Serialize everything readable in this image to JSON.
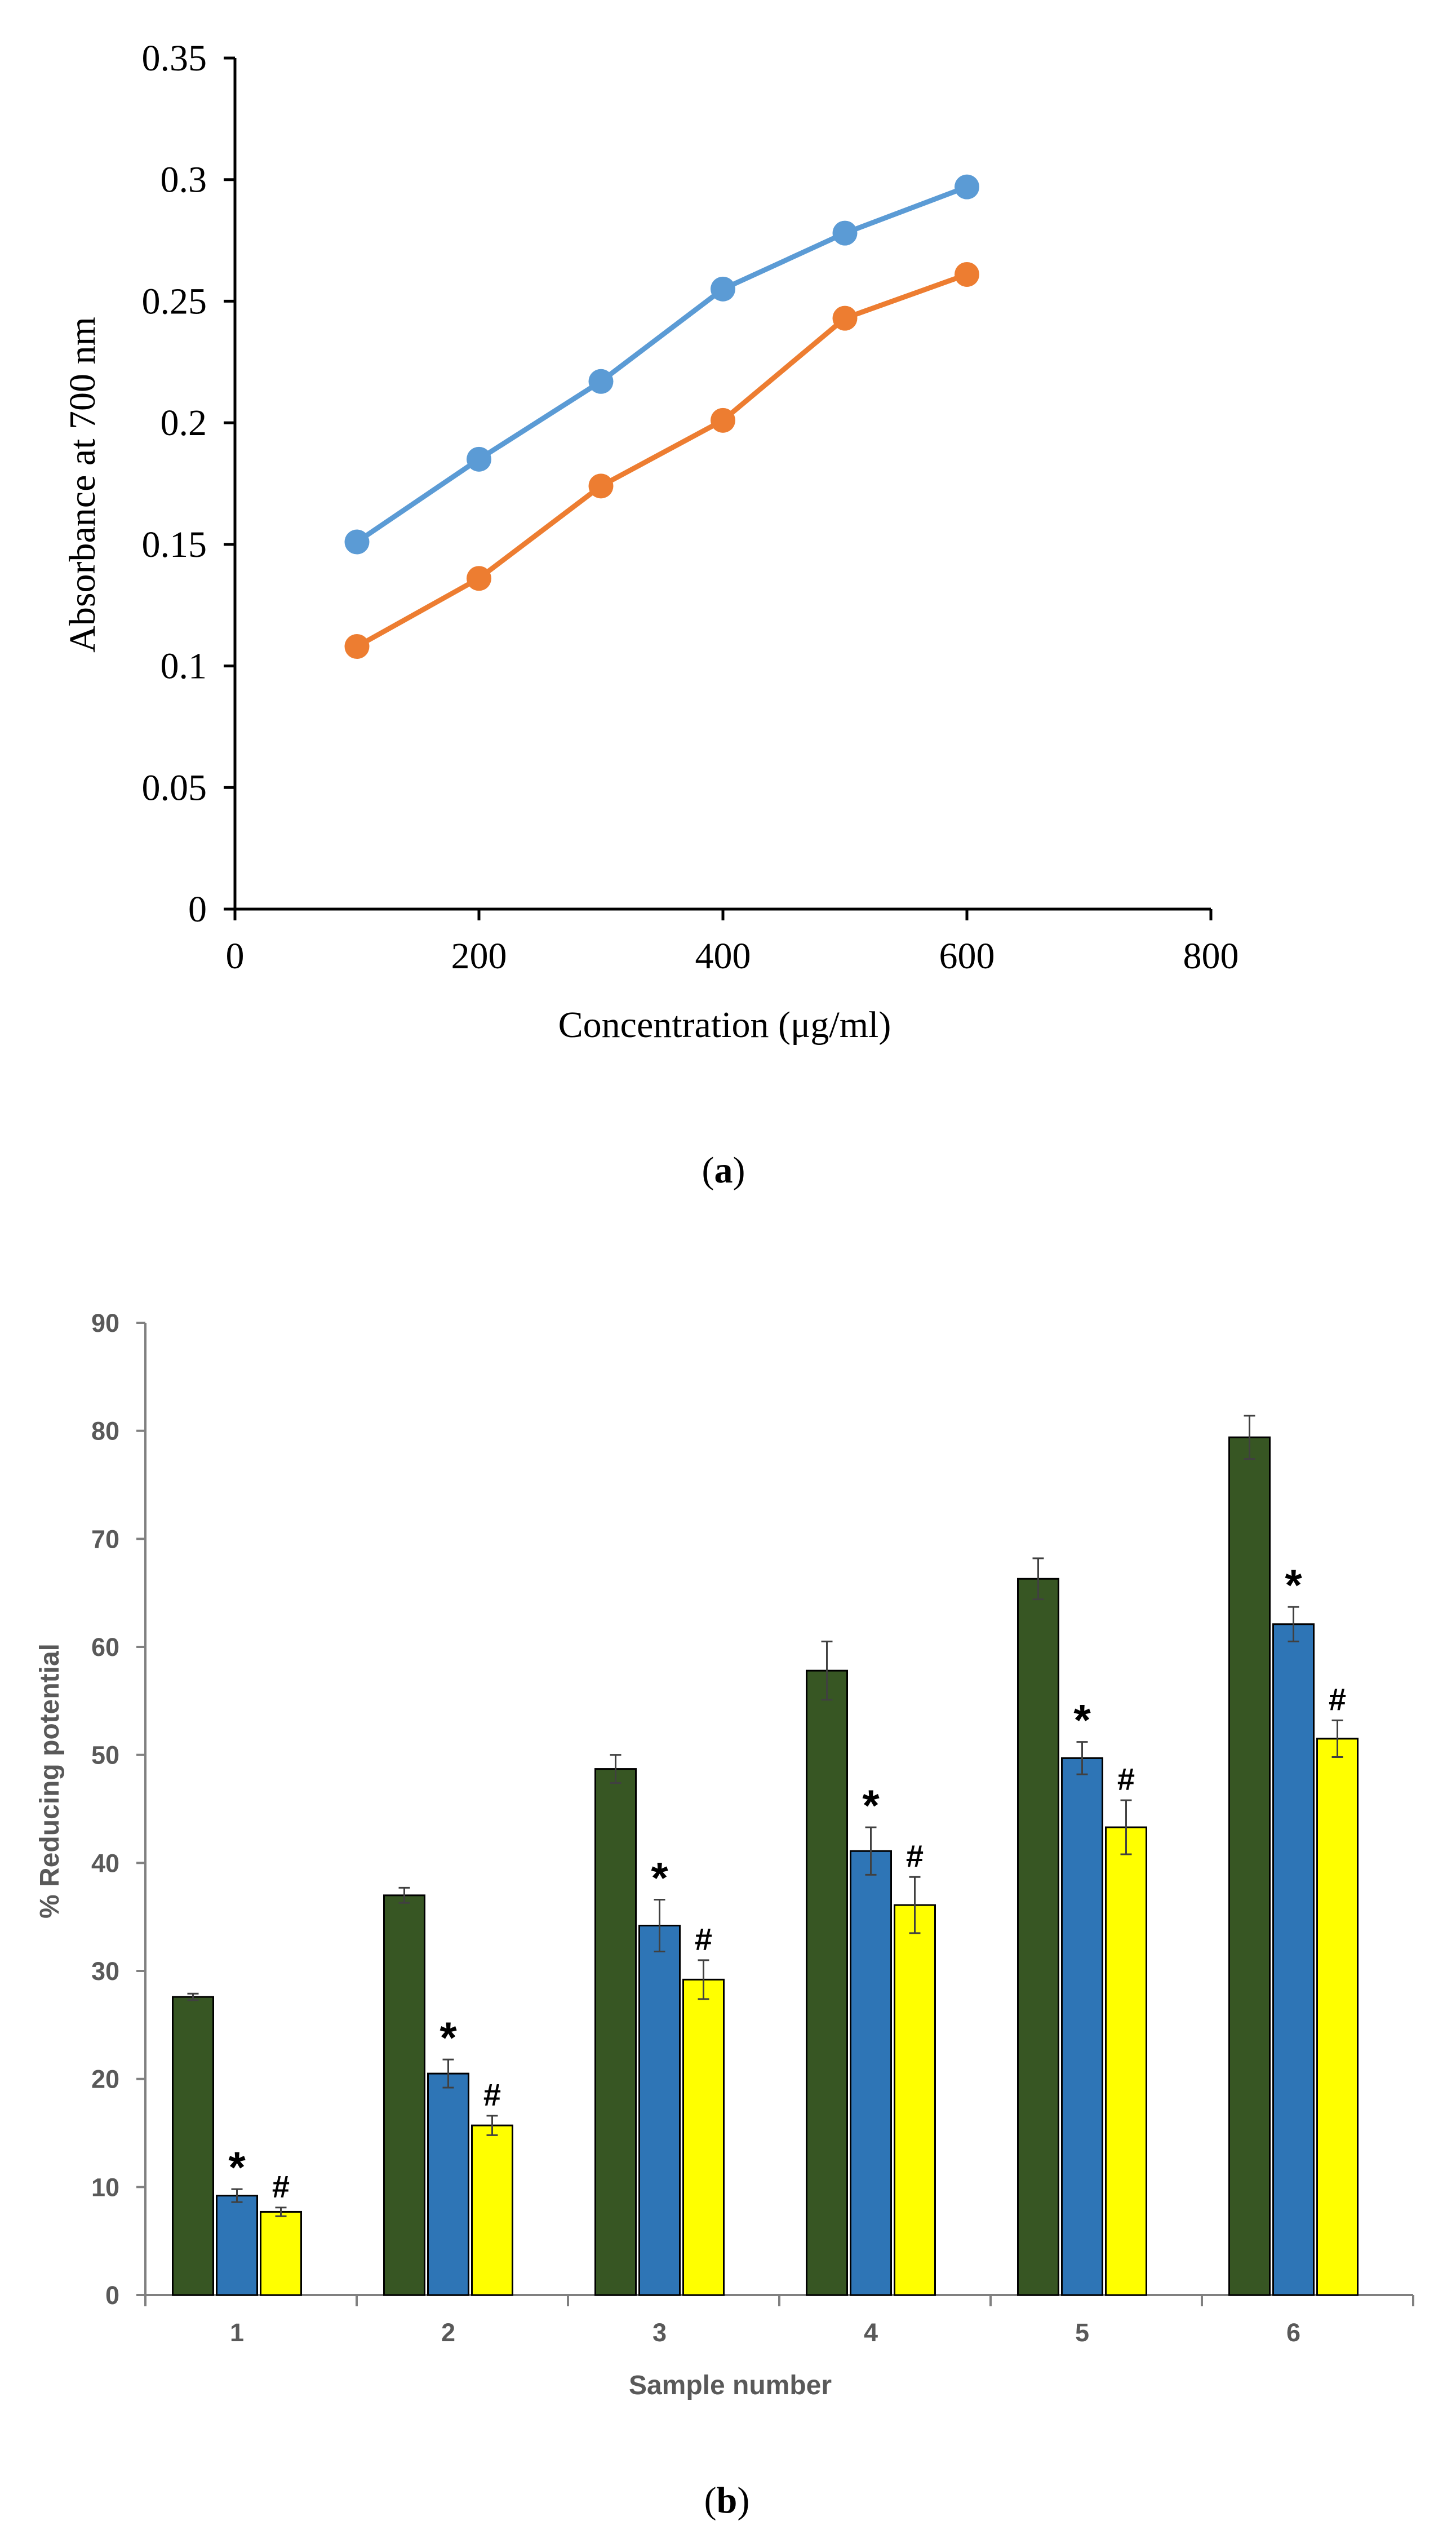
{
  "panels": {
    "a_label": "a",
    "b_label": "b"
  },
  "colors": {
    "line_blue": "#5B9BD5",
    "line_orange": "#ED7D31",
    "bar_green": "#375623",
    "bar_blue": "#2E75B6",
    "bar_yellow": "#FFFF00",
    "axis": "#000000",
    "axis_b": "#808080",
    "error_bar": "#404040"
  },
  "chart_data": [
    {
      "type": "line",
      "title": "",
      "xlabel": "Concentration (μg/ml)",
      "ylabel": "Absorbance at 700 nm",
      "xlim": [
        0,
        800
      ],
      "ylim": [
        0,
        0.35
      ],
      "xticks": [
        0,
        200,
        400,
        600,
        800
      ],
      "yticks": [
        0,
        0.05,
        0.1,
        0.15,
        0.2,
        0.25,
        0.3,
        0.35
      ],
      "xtick_labels": [
        "0",
        "200",
        "400",
        "600",
        "800"
      ],
      "ytick_labels": [
        "0",
        "0.05",
        "0.1",
        "0.15",
        "0.2",
        "0.25",
        "0.3",
        "0.35"
      ],
      "grid": false,
      "legend": "none",
      "series": [
        {
          "name": "series-1",
          "x": [
            100,
            200,
            300,
            400,
            500,
            600
          ],
          "values": [
            0.151,
            0.185,
            0.217,
            0.255,
            0.278,
            0.297
          ]
        },
        {
          "name": "series-2",
          "x": [
            100,
            200,
            300,
            400,
            500,
            600
          ],
          "values": [
            0.108,
            0.136,
            0.174,
            0.201,
            0.243,
            0.261
          ]
        }
      ]
    },
    {
      "type": "bar",
      "title": "",
      "xlabel": "Sample number",
      "ylabel": "% Reducing potential",
      "ylim": [
        0,
        90
      ],
      "yticks": [
        0,
        10,
        20,
        30,
        40,
        50,
        60,
        70,
        80,
        90
      ],
      "ytick_labels": [
        "0",
        "10",
        "20",
        "30",
        "40",
        "50",
        "60",
        "70",
        "80",
        "90"
      ],
      "categories": [
        "1",
        "2",
        "3",
        "4",
        "5",
        "6"
      ],
      "grid": false,
      "legend": "none",
      "series": [
        {
          "name": "series-green",
          "values": [
            27.6,
            37.0,
            48.7,
            57.8,
            66.3,
            79.4
          ],
          "errors": [
            0.3,
            0.7,
            1.3,
            2.7,
            1.9,
            2.0
          ],
          "marker": ""
        },
        {
          "name": "series-blue",
          "values": [
            9.2,
            20.5,
            34.2,
            41.1,
            49.7,
            62.1
          ],
          "errors": [
            0.6,
            1.3,
            2.4,
            2.2,
            1.5,
            1.6
          ],
          "marker": "*"
        },
        {
          "name": "series-yellow",
          "values": [
            7.7,
            15.7,
            29.2,
            36.1,
            43.3,
            51.5
          ],
          "errors": [
            0.4,
            0.9,
            1.8,
            2.6,
            2.5,
            1.7
          ],
          "marker": "#"
        }
      ]
    }
  ]
}
